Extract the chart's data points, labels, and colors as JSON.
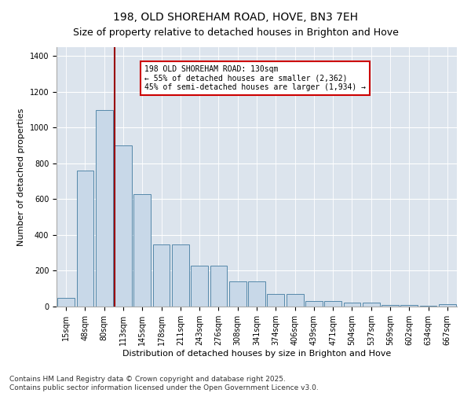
{
  "title": "198, OLD SHOREHAM ROAD, HOVE, BN3 7EH",
  "subtitle": "Size of property relative to detached houses in Brighton and Hove",
  "xlabel": "Distribution of detached houses by size in Brighton and Hove",
  "ylabel": "Number of detached properties",
  "categories": [
    "15sqm",
    "48sqm",
    "80sqm",
    "113sqm",
    "145sqm",
    "178sqm",
    "211sqm",
    "243sqm",
    "276sqm",
    "308sqm",
    "341sqm",
    "374sqm",
    "406sqm",
    "439sqm",
    "471sqm",
    "504sqm",
    "537sqm",
    "569sqm",
    "602sqm",
    "634sqm",
    "667sqm"
  ],
  "bar_heights": [
    50,
    760,
    1100,
    900,
    630,
    345,
    345,
    230,
    230,
    140,
    140,
    70,
    70,
    30,
    30,
    20,
    20,
    10,
    10,
    3,
    15
  ],
  "bar_color": "#c8d8e8",
  "bar_edge_color": "#5588aa",
  "vline_x_index": 3,
  "vline_color": "#990000",
  "annotation_text": "198 OLD SHOREHAM ROAD: 130sqm\n← 55% of detached houses are smaller (2,362)\n45% of semi-detached houses are larger (1,934) →",
  "annotation_box_color": "#ffffff",
  "annotation_border_color": "#cc0000",
  "ylim": [
    0,
    1450
  ],
  "yticks": [
    0,
    200,
    400,
    600,
    800,
    1000,
    1200,
    1400
  ],
  "background_color": "#dce4ed",
  "footer_line1": "Contains HM Land Registry data © Crown copyright and database right 2025.",
  "footer_line2": "Contains public sector information licensed under the Open Government Licence v3.0.",
  "title_fontsize": 10,
  "subtitle_fontsize": 9,
  "xlabel_fontsize": 8,
  "ylabel_fontsize": 8,
  "tick_fontsize": 7,
  "footer_fontsize": 6.5,
  "annot_fontsize": 7
}
